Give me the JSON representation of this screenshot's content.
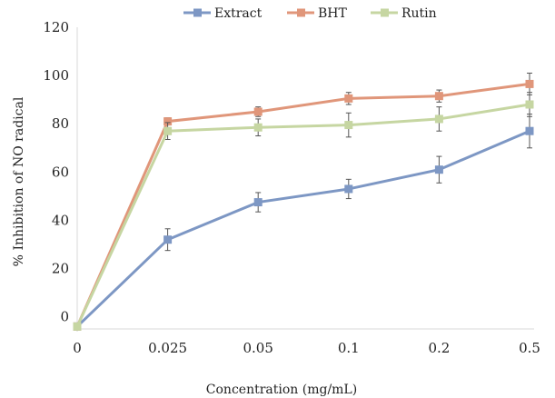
{
  "chart_data": {
    "type": "line",
    "categories": [
      "0",
      "0.025",
      "0.05",
      "0.1",
      "0.2",
      "0.5"
    ],
    "xlabel": "Concentration (mg/mL)",
    "ylabel": "% Inhibition of NO radical",
    "ylim": [
      -5,
      120
    ],
    "yticks": [
      0,
      20,
      40,
      60,
      80,
      100,
      120
    ],
    "ytick_labels": [
      "0",
      "20",
      "40",
      "60",
      "80",
      "100",
      "120"
    ],
    "grid": false,
    "legend": "top-center",
    "series": [
      {
        "name": "Extract",
        "color": "#7d97c4",
        "values": [
          -4,
          32,
          47.5,
          53,
          61,
          77
        ],
        "errors": [
          0,
          4.5,
          4,
          4,
          5.5,
          7
        ]
      },
      {
        "name": "BHT",
        "color": "#e0967a",
        "values": [
          -4,
          81,
          85,
          90.5,
          91.5,
          96.5
        ],
        "errors": [
          0,
          1.5,
          2,
          2.5,
          2.5,
          4.5
        ]
      },
      {
        "name": "Rutin",
        "color": "#c6d6a2",
        "values": [
          -4,
          77,
          78.5,
          79.5,
          82,
          88
        ],
        "errors": [
          0,
          3.5,
          3.5,
          5,
          5,
          5
        ]
      }
    ]
  }
}
